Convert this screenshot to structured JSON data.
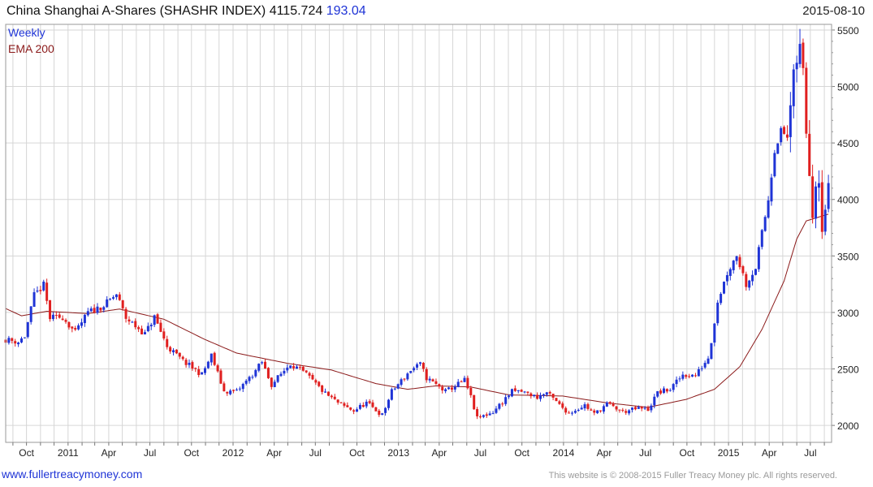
{
  "header": {
    "title": "China Shanghai A-Shares (SHASHR INDEX) 4115.724",
    "change": "193.04",
    "date": "2015-08-10"
  },
  "footer": {
    "left": "www.fullertreacymoney.com",
    "right": "This website is © 2008-2015 Fuller Treacy Money plc. All rights reserved."
  },
  "colors": {
    "up": "#1f34d6",
    "down": "#e01f1f",
    "ema": "#8b1a1a",
    "grid": "#d6d6d6"
  },
  "chart_data": {
    "type": "candlestick",
    "legend": [
      {
        "label": "Weekly",
        "color": "#1f34d6"
      },
      {
        "label": "EMA 200",
        "color": "#8b1a1a"
      }
    ],
    "legend_position": "top-left",
    "grid": true,
    "ylim": [
      1850,
      5550
    ],
    "yticks": [
      2000,
      2500,
      3000,
      3500,
      4000,
      4500,
      5000,
      5500
    ],
    "xlim": [
      "2010-08-16",
      "2015-08-17"
    ],
    "xticks": [
      {
        "date": "2010-10-01",
        "label": "Oct"
      },
      {
        "date": "2011-01-01",
        "label": "2011"
      },
      {
        "date": "2011-04-01",
        "label": "Apr"
      },
      {
        "date": "2011-07-01",
        "label": "Jul"
      },
      {
        "date": "2011-10-01",
        "label": "Oct"
      },
      {
        "date": "2012-01-01",
        "label": "2012"
      },
      {
        "date": "2012-04-01",
        "label": "Apr"
      },
      {
        "date": "2012-07-01",
        "label": "Jul"
      },
      {
        "date": "2012-10-01",
        "label": "Oct"
      },
      {
        "date": "2013-01-01",
        "label": "2013"
      },
      {
        "date": "2013-04-01",
        "label": "Apr"
      },
      {
        "date": "2013-07-01",
        "label": "Jul"
      },
      {
        "date": "2013-10-01",
        "label": "Oct"
      },
      {
        "date": "2014-01-01",
        "label": "2014"
      },
      {
        "date": "2014-04-01",
        "label": "Apr"
      },
      {
        "date": "2014-07-01",
        "label": "Jul"
      },
      {
        "date": "2014-10-01",
        "label": "Oct"
      },
      {
        "date": "2015-01-01",
        "label": "2015"
      },
      {
        "date": "2015-04-01",
        "label": "Apr"
      },
      {
        "date": "2015-07-01",
        "label": "Jul"
      }
    ],
    "close_anchors": [
      [
        "2010-08-16",
        2760
      ],
      [
        "2010-09-13",
        2740
      ],
      [
        "2010-09-27",
        2790
      ],
      [
        "2010-10-18",
        3150
      ],
      [
        "2010-11-08",
        3240
      ],
      [
        "2010-11-22",
        2950
      ],
      [
        "2010-12-20",
        2960
      ],
      [
        "2011-01-17",
        2820
      ],
      [
        "2011-02-14",
        3000
      ],
      [
        "2011-03-21",
        3060
      ],
      [
        "2011-04-18",
        3160
      ],
      [
        "2011-05-09",
        2950
      ],
      [
        "2011-06-20",
        2810
      ],
      [
        "2011-07-11",
        2960
      ],
      [
        "2011-08-08",
        2700
      ],
      [
        "2011-09-12",
        2570
      ],
      [
        "2011-10-24",
        2450
      ],
      [
        "2011-11-14",
        2620
      ],
      [
        "2011-12-12",
        2300
      ],
      [
        "2012-01-09",
        2300
      ],
      [
        "2012-02-13",
        2450
      ],
      [
        "2012-03-05",
        2560
      ],
      [
        "2012-03-26",
        2360
      ],
      [
        "2012-05-07",
        2550
      ],
      [
        "2012-06-11",
        2450
      ],
      [
        "2012-07-23",
        2280
      ],
      [
        "2012-08-27",
        2180
      ],
      [
        "2012-09-24",
        2130
      ],
      [
        "2012-10-22",
        2200
      ],
      [
        "2012-11-26",
        2090
      ],
      [
        "2012-12-17",
        2300
      ],
      [
        "2013-01-28",
        2490
      ],
      [
        "2013-02-18",
        2540
      ],
      [
        "2013-03-04",
        2420
      ],
      [
        "2013-04-15",
        2300
      ],
      [
        "2013-05-27",
        2400
      ],
      [
        "2013-06-10",
        2250
      ],
      [
        "2013-06-24",
        2060
      ],
      [
        "2013-07-29",
        2120
      ],
      [
        "2013-09-09",
        2300
      ],
      [
        "2013-09-30",
        2300
      ],
      [
        "2013-11-04",
        2250
      ],
      [
        "2013-11-25",
        2290
      ],
      [
        "2013-12-23",
        2180
      ],
      [
        "2014-01-13",
        2110
      ],
      [
        "2014-02-17",
        2180
      ],
      [
        "2014-03-10",
        2100
      ],
      [
        "2014-04-07",
        2190
      ],
      [
        "2014-05-12",
        2120
      ],
      [
        "2014-06-16",
        2150
      ],
      [
        "2014-07-07",
        2140
      ],
      [
        "2014-07-28",
        2290
      ],
      [
        "2014-08-25",
        2320
      ],
      [
        "2014-09-22",
        2450
      ],
      [
        "2014-10-20",
        2440
      ],
      [
        "2014-11-17",
        2600
      ],
      [
        "2014-11-24",
        2750
      ],
      [
        "2014-12-08",
        3100
      ],
      [
        "2014-12-29",
        3350
      ],
      [
        "2015-01-19",
        3510
      ],
      [
        "2015-02-09",
        3250
      ],
      [
        "2015-03-02",
        3400
      ],
      [
        "2015-03-16",
        3700
      ],
      [
        "2015-03-30",
        4000
      ],
      [
        "2015-04-13",
        4450
      ],
      [
        "2015-04-27",
        4600
      ],
      [
        "2015-05-11",
        4550
      ],
      [
        "2015-05-25",
        5100
      ],
      [
        "2015-06-08",
        5350
      ],
      [
        "2015-06-15",
        5150
      ],
      [
        "2015-06-22",
        4600
      ],
      [
        "2015-06-29",
        4250
      ],
      [
        "2015-07-06",
        3850
      ],
      [
        "2015-07-13",
        4150
      ],
      [
        "2015-07-20",
        4170
      ],
      [
        "2015-07-27",
        3750
      ],
      [
        "2015-08-03",
        3920
      ],
      [
        "2015-08-10",
        4116
      ]
    ],
    "ema_anchors": [
      [
        "2010-08-16",
        3035
      ],
      [
        "2010-09-20",
        2970
      ],
      [
        "2010-11-15",
        3010
      ],
      [
        "2011-02-14",
        2990
      ],
      [
        "2011-04-25",
        3030
      ],
      [
        "2011-08-01",
        2940
      ],
      [
        "2011-10-31",
        2760
      ],
      [
        "2012-01-09",
        2640
      ],
      [
        "2012-04-30",
        2550
      ],
      [
        "2012-08-06",
        2490
      ],
      [
        "2012-11-12",
        2370
      ],
      [
        "2013-01-21",
        2320
      ],
      [
        "2013-03-25",
        2350
      ],
      [
        "2013-06-10",
        2340
      ],
      [
        "2013-09-02",
        2270
      ],
      [
        "2013-12-30",
        2260
      ],
      [
        "2014-04-07",
        2200
      ],
      [
        "2014-07-07",
        2160
      ],
      [
        "2014-09-29",
        2230
      ],
      [
        "2014-12-01",
        2320
      ],
      [
        "2015-01-26",
        2520
      ],
      [
        "2015-03-16",
        2850
      ],
      [
        "2015-05-04",
        3280
      ],
      [
        "2015-06-01",
        3650
      ],
      [
        "2015-06-22",
        3810
      ],
      [
        "2015-08-10",
        3870
      ]
    ]
  }
}
